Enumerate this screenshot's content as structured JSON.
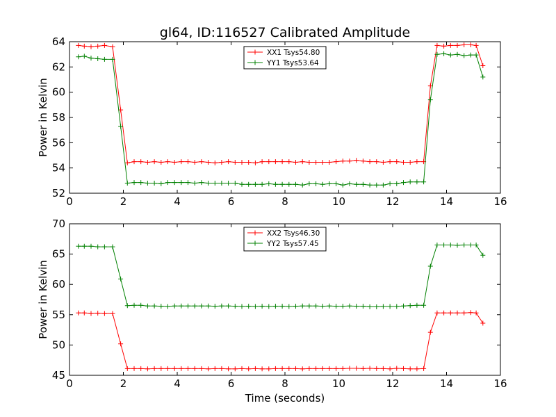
{
  "figure": {
    "title": "gl64, ID:116527 Calibrated Amplitude",
    "xlabel": "Time (seconds)"
  },
  "chart_data": [
    {
      "type": "line",
      "title": "gl64, ID:116527 Calibrated Amplitude",
      "xlabel": "",
      "ylabel": "Power in Kelvin",
      "xlim": [
        0,
        16
      ],
      "ylim": [
        52,
        64
      ],
      "x_ticks": [
        "0",
        "2",
        "4",
        "6",
        "8",
        "10",
        "12",
        "14",
        "16"
      ],
      "y_ticks": [
        "52",
        "54",
        "56",
        "58",
        "60",
        "62",
        "64"
      ],
      "grid": false,
      "legend_position": "top-center",
      "x": [
        0.33,
        0.55,
        0.8,
        1.05,
        1.3,
        1.6,
        1.9,
        2.15,
        2.4,
        2.65,
        2.9,
        3.15,
        3.4,
        3.65,
        3.9,
        4.15,
        4.4,
        4.65,
        4.9,
        5.15,
        5.4,
        5.65,
        5.9,
        6.15,
        6.4,
        6.65,
        6.9,
        7.15,
        7.4,
        7.65,
        7.9,
        8.15,
        8.4,
        8.65,
        8.9,
        9.15,
        9.4,
        9.65,
        9.9,
        10.15,
        10.4,
        10.65,
        10.9,
        11.15,
        11.4,
        11.65,
        11.9,
        12.15,
        12.4,
        12.65,
        12.9,
        13.15,
        13.4,
        13.65,
        13.9,
        14.15,
        14.4,
        14.65,
        14.9,
        15.1,
        15.35
      ],
      "series": [
        {
          "name": "XX1 Tsys54.80",
          "color": "#ff0000",
          "values": [
            63.7,
            63.65,
            63.6,
            63.65,
            63.7,
            63.6,
            58.6,
            54.4,
            54.5,
            54.5,
            54.45,
            54.5,
            54.45,
            54.5,
            54.45,
            54.5,
            54.5,
            54.45,
            54.5,
            54.45,
            54.4,
            54.45,
            54.5,
            54.45,
            54.45,
            54.45,
            54.4,
            54.5,
            54.5,
            54.5,
            54.5,
            54.5,
            54.45,
            54.5,
            54.45,
            54.45,
            54.45,
            54.45,
            54.5,
            54.55,
            54.55,
            54.6,
            54.55,
            54.5,
            54.5,
            54.45,
            54.5,
            54.5,
            54.45,
            54.45,
            54.5,
            54.5,
            60.5,
            63.7,
            63.65,
            63.7,
            63.7,
            63.75,
            63.75,
            63.7,
            62.1
          ]
        },
        {
          "name": "YY1 Tsys53.64",
          "color": "#008000",
          "values": [
            62.8,
            62.85,
            62.7,
            62.65,
            62.6,
            62.6,
            57.3,
            52.8,
            52.85,
            52.85,
            52.8,
            52.8,
            52.75,
            52.85,
            52.85,
            52.85,
            52.85,
            52.8,
            52.85,
            52.8,
            52.8,
            52.8,
            52.8,
            52.8,
            52.7,
            52.7,
            52.7,
            52.7,
            52.75,
            52.7,
            52.7,
            52.7,
            52.7,
            52.65,
            52.75,
            52.75,
            52.7,
            52.75,
            52.75,
            52.65,
            52.75,
            52.7,
            52.7,
            52.65,
            52.65,
            52.65,
            52.75,
            52.75,
            52.85,
            52.9,
            52.9,
            52.9,
            59.4,
            63.0,
            63.05,
            62.95,
            63.0,
            62.9,
            62.95,
            62.95,
            61.2
          ]
        }
      ]
    },
    {
      "type": "line",
      "title": "",
      "xlabel": "Time (seconds)",
      "ylabel": "Power in Kelvin",
      "xlim": [
        0,
        16
      ],
      "ylim": [
        45,
        70
      ],
      "x_ticks": [
        "0",
        "2",
        "4",
        "6",
        "8",
        "10",
        "12",
        "14",
        "16"
      ],
      "y_ticks": [
        "45",
        "50",
        "55",
        "60",
        "65",
        "70"
      ],
      "grid": false,
      "legend_position": "top-center",
      "x": [
        0.33,
        0.55,
        0.8,
        1.05,
        1.3,
        1.6,
        1.9,
        2.15,
        2.4,
        2.65,
        2.9,
        3.15,
        3.4,
        3.65,
        3.9,
        4.15,
        4.4,
        4.65,
        4.9,
        5.15,
        5.4,
        5.65,
        5.9,
        6.15,
        6.4,
        6.65,
        6.9,
        7.15,
        7.4,
        7.65,
        7.9,
        8.15,
        8.4,
        8.65,
        8.9,
        9.15,
        9.4,
        9.65,
        9.9,
        10.15,
        10.4,
        10.65,
        10.9,
        11.15,
        11.4,
        11.65,
        11.9,
        12.15,
        12.4,
        12.65,
        12.9,
        13.15,
        13.4,
        13.65,
        13.9,
        14.15,
        14.4,
        14.65,
        14.9,
        15.1,
        15.35
      ],
      "series": [
        {
          "name": "XX2 Tsys46.30",
          "color": "#ff0000",
          "values": [
            55.3,
            55.3,
            55.2,
            55.25,
            55.2,
            55.2,
            50.2,
            46.1,
            46.1,
            46.1,
            46.05,
            46.1,
            46.1,
            46.1,
            46.1,
            46.1,
            46.1,
            46.1,
            46.1,
            46.05,
            46.1,
            46.1,
            46.05,
            46.05,
            46.1,
            46.05,
            46.1,
            46.05,
            46.05,
            46.1,
            46.1,
            46.1,
            46.1,
            46.05,
            46.1,
            46.1,
            46.1,
            46.1,
            46.1,
            46.1,
            46.15,
            46.15,
            46.1,
            46.15,
            46.1,
            46.1,
            46.05,
            46.15,
            46.1,
            46.05,
            46.05,
            46.1,
            52.1,
            55.3,
            55.3,
            55.3,
            55.3,
            55.3,
            55.35,
            55.3,
            53.6
          ]
        },
        {
          "name": "YY2 Tsys57.45",
          "color": "#008000",
          "values": [
            66.3,
            66.3,
            66.3,
            66.2,
            66.2,
            66.2,
            60.9,
            56.5,
            56.55,
            56.55,
            56.45,
            56.45,
            56.4,
            56.35,
            56.45,
            56.45,
            56.45,
            56.45,
            56.45,
            56.45,
            56.4,
            56.45,
            56.45,
            56.4,
            56.35,
            56.4,
            56.35,
            56.4,
            56.35,
            56.4,
            56.4,
            56.35,
            56.4,
            56.45,
            56.45,
            56.45,
            56.4,
            56.45,
            56.4,
            56.4,
            56.45,
            56.4,
            56.4,
            56.3,
            56.3,
            56.35,
            56.35,
            56.35,
            56.45,
            56.5,
            56.55,
            56.55,
            63.0,
            66.5,
            66.5,
            66.5,
            66.45,
            66.5,
            66.5,
            66.5,
            64.8
          ]
        }
      ]
    }
  ]
}
